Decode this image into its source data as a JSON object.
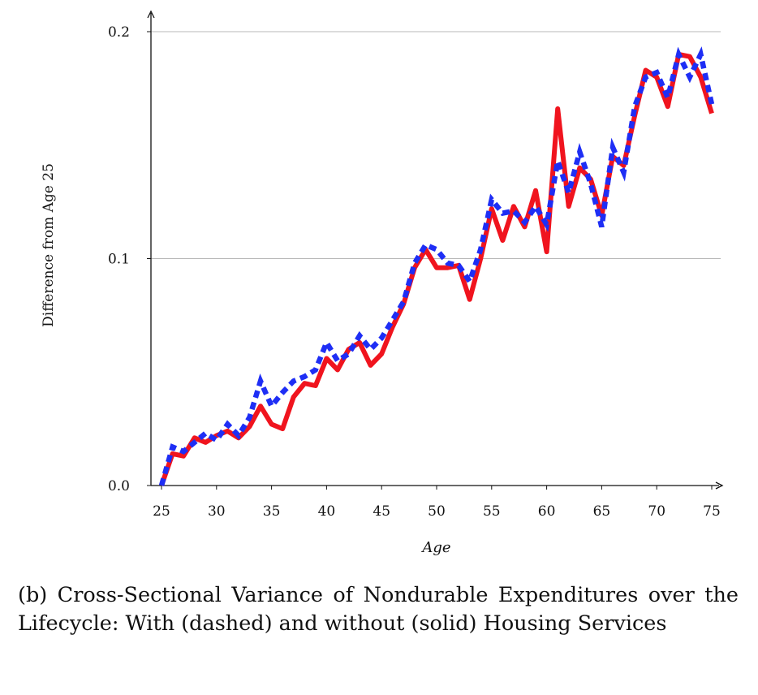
{
  "caption": "(b) Cross-Sectional Variance of Nondurable Expenditures over the Lifecycle: With (dashed) and without (solid) Housing Services",
  "chart_data": {
    "type": "line",
    "title": "",
    "xlabel": "Age",
    "ylabel": "Difference from Age 25",
    "xlim": [
      24,
      76
    ],
    "ylim": [
      0,
      0.2
    ],
    "xticks": [
      25,
      30,
      35,
      40,
      45,
      50,
      55,
      60,
      65,
      70,
      75
    ],
    "xtick_labels": [
      "25",
      "30",
      "35",
      "40",
      "45",
      "50",
      "55",
      "60",
      "65",
      "70",
      "75"
    ],
    "yticks": [
      0,
      0.1,
      0.2
    ],
    "ytick_labels": [
      "0.0",
      "0.1",
      "0.2"
    ],
    "grid": "horizontal",
    "legend": "none",
    "x": [
      25,
      26,
      27,
      28,
      29,
      30,
      31,
      32,
      33,
      34,
      35,
      36,
      37,
      38,
      39,
      40,
      41,
      42,
      43,
      44,
      45,
      46,
      47,
      48,
      49,
      50,
      51,
      52,
      53,
      54,
      55,
      56,
      57,
      58,
      59,
      60,
      61,
      62,
      63,
      64,
      65,
      66,
      67,
      68,
      69,
      70,
      71,
      72,
      73,
      74,
      75
    ],
    "series": [
      {
        "style": "solid",
        "color": "#f0141e",
        "values": [
          0.0,
          0.014,
          0.013,
          0.021,
          0.019,
          0.022,
          0.024,
          0.021,
          0.026,
          0.035,
          0.027,
          0.025,
          0.039,
          0.045,
          0.044,
          0.056,
          0.051,
          0.06,
          0.063,
          0.053,
          0.058,
          0.07,
          0.08,
          0.096,
          0.104,
          0.096,
          0.096,
          0.097,
          0.082,
          0.1,
          0.122,
          0.108,
          0.123,
          0.114,
          0.13,
          0.103,
          0.166,
          0.123,
          0.14,
          0.135,
          0.119,
          0.145,
          0.141,
          0.163,
          0.183,
          0.18,
          0.167,
          0.19,
          0.189,
          0.18,
          0.164
        ]
      },
      {
        "style": "dashed",
        "color": "#1e2ef5",
        "values": [
          0.0,
          0.017,
          0.015,
          0.019,
          0.023,
          0.02,
          0.027,
          0.022,
          0.03,
          0.046,
          0.035,
          0.041,
          0.046,
          0.048,
          0.051,
          0.063,
          0.055,
          0.058,
          0.066,
          0.06,
          0.065,
          0.073,
          0.081,
          0.098,
          0.106,
          0.104,
          0.098,
          0.097,
          0.09,
          0.104,
          0.126,
          0.12,
          0.121,
          0.116,
          0.123,
          0.115,
          0.143,
          0.129,
          0.147,
          0.133,
          0.114,
          0.149,
          0.138,
          0.167,
          0.18,
          0.182,
          0.171,
          0.19,
          0.18,
          0.19,
          0.168
        ]
      }
    ]
  }
}
